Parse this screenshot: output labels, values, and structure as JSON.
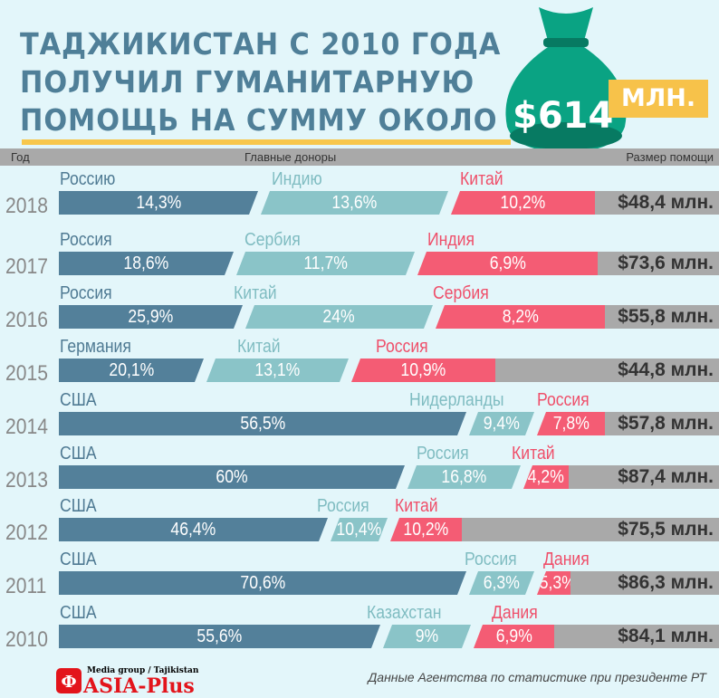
{
  "title": {
    "lines": [
      "ТАДЖИКИСТАН С 2010 ГОДА",
      "ПОЛУЧИЛ ГУМАНИТАРНУЮ",
      "ПОМОЩЬ НА СУММУ ОКОЛО"
    ],
    "amount": "$614",
    "unit": "МЛН."
  },
  "header": {
    "year": "Год",
    "donors": "Главные доноры",
    "size": "Размер помощи"
  },
  "colors": {
    "donor1": "#53809a",
    "donor2": "#8ac4c8",
    "donor3": "#f45c74",
    "total": "#a9a9a9"
  },
  "chart_data": {
    "type": "bar",
    "title": "Таджикистан с 2010 года получил гуманитарную помощь на сумму около $614 млн.",
    "xlabel": "Главные доноры",
    "ylabel": "Год",
    "rows": [
      {
        "year": "2018",
        "donors": [
          {
            "name": "Россию",
            "pct": "14,3%",
            "value": 14.3
          },
          {
            "name": "Индию",
            "pct": "13,6%",
            "value": 13.6
          },
          {
            "name": "Китай",
            "pct": "10,2%",
            "value": 10.2
          }
        ],
        "total": "$48,4 млн."
      },
      {
        "year": "2017",
        "donors": [
          {
            "name": "Россия",
            "pct": "18,6%",
            "value": 18.6
          },
          {
            "name": "Сербия",
            "pct": "11,7%",
            "value": 11.7
          },
          {
            "name": "Индия",
            "pct": "6,9%",
            "value": 6.9
          }
        ],
        "total": "$73,6 млн."
      },
      {
        "year": "2016",
        "donors": [
          {
            "name": "Россия",
            "pct": "25,9%",
            "value": 25.9
          },
          {
            "name": "Китай",
            "pct": "24%",
            "value": 24
          },
          {
            "name": "Сербия",
            "pct": "8,2%",
            "value": 8.2
          }
        ],
        "total": "$55,8 млн."
      },
      {
        "year": "2015",
        "donors": [
          {
            "name": "Германия",
            "pct": "20,1%",
            "value": 20.1
          },
          {
            "name": "Китай",
            "pct": "13,1%",
            "value": 13.1
          },
          {
            "name": "Россия",
            "pct": "10,9%",
            "value": 10.9
          }
        ],
        "total": "$44,8 млн."
      },
      {
        "year": "2014",
        "donors": [
          {
            "name": "США",
            "pct": "56,5%",
            "value": 56.5
          },
          {
            "name": "Нидерланды",
            "pct": "9,4%",
            "value": 9.4
          },
          {
            "name": "Россия",
            "pct": "7,8%",
            "value": 7.8
          }
        ],
        "total": "$57,8 млн."
      },
      {
        "year": "2013",
        "donors": [
          {
            "name": "США",
            "pct": "60%",
            "value": 60
          },
          {
            "name": "Россия",
            "pct": "16,8%",
            "value": 16.8
          },
          {
            "name": "Китай",
            "pct": "4,2%",
            "value": 4.2
          }
        ],
        "total": "$87,4 млн."
      },
      {
        "year": "2012",
        "donors": [
          {
            "name": "США",
            "pct": "46,4%",
            "value": 46.4
          },
          {
            "name": "Россия",
            "pct": "10,4%",
            "value": 10.4
          },
          {
            "name": "Китай",
            "pct": "10,2%",
            "value": 10.2
          }
        ],
        "total": "$75,5 млн."
      },
      {
        "year": "2011",
        "donors": [
          {
            "name": "США",
            "pct": "70,6%",
            "value": 70.6
          },
          {
            "name": "Россия",
            "pct": "6,3%",
            "value": 6.3
          },
          {
            "name": "Дания",
            "pct": "5,3%",
            "value": 5.3
          }
        ],
        "total": "$86,3 млн."
      },
      {
        "year": "2010",
        "donors": [
          {
            "name": "США",
            "pct": "55,6%",
            "value": 55.6
          },
          {
            "name": "Казахстан",
            "pct": "9%",
            "value": 9
          },
          {
            "name": "Дания",
            "pct": "6,9%",
            "value": 6.9
          }
        ],
        "total": "$84,1 млн."
      }
    ]
  },
  "footer": {
    "logo_top": "Media group / Tajikistan",
    "logo_name": "ASIA-Plus",
    "source": "Данные Агентства по статистике при президенте РТ"
  }
}
